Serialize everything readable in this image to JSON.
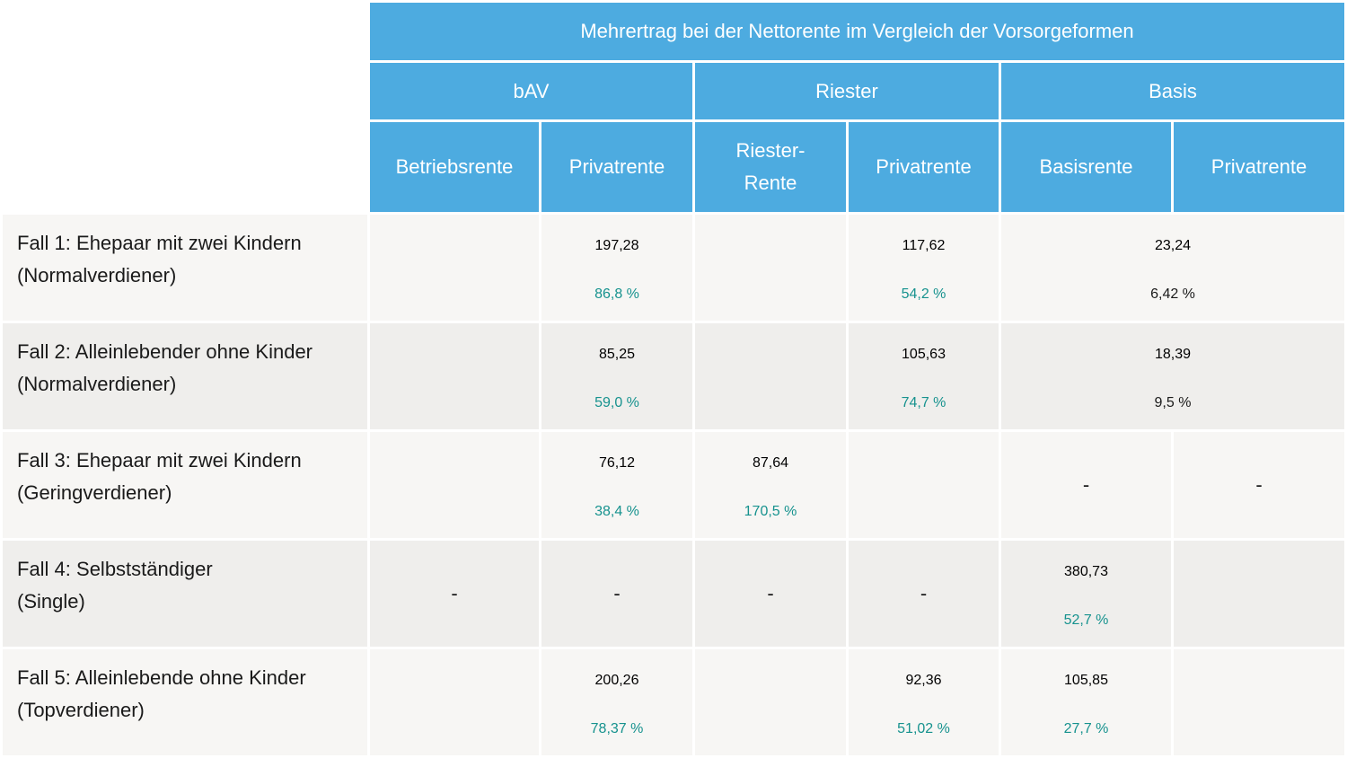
{
  "header": {
    "title": "Mehrertrag bei der Nettorente im Vergleich der Vorsorgeformen",
    "groups": [
      "bAV",
      "Riester",
      "Basis"
    ],
    "columns": [
      "Betriebsrente",
      "Privatrente",
      "Riester-",
      "Rente",
      "Privatrente",
      "Basisrente",
      "Privatrente"
    ]
  },
  "rows": [
    {
      "label1": "Fall 1: Ehepaar mit zwei Kindern",
      "label2": "(Normalverdiener)",
      "bav_priv_val": "197,28",
      "bav_priv_pct": "86,8 %",
      "riester_priv_val": "117,62",
      "riester_priv_pct": "54,2 %",
      "basis_val": "23,24",
      "basis_pct": "6,42 %"
    },
    {
      "label1": "Fall 2: Alleinlebender ohne Kinder",
      "label2": "(Normalverdiener)",
      "bav_priv_val": "85,25",
      "bav_priv_pct": "59,0 %",
      "riester_priv_val": "105,63",
      "riester_priv_pct": "74,7 %",
      "basis_val": "18,39",
      "basis_pct": "9,5 %"
    },
    {
      "label1": "Fall 3: Ehepaar mit zwei Kindern",
      "label2": "(Geringverdiener)",
      "bav_priv_val": "76,12",
      "bav_priv_pct": "38,4 %",
      "riester_val": "87,64",
      "riester_pct": "170,5 %",
      "basis_basisrente": "-",
      "basis_priv": "-"
    },
    {
      "label1": "Fall 4: Selbstständiger",
      "label2": "(Single)",
      "betriebsrente": "-",
      "bav_priv": "-",
      "riester": "-",
      "riester_priv": "-",
      "basisrente_val": "380,73",
      "basisrente_pct": "52,7 %"
    },
    {
      "label1": "Fall 5: Alleinlebende ohne Kinder",
      "label2": "(Topverdiener)",
      "bav_priv_val": "200,26",
      "bav_priv_pct": "78,37 %",
      "riester_priv_val": "92,36",
      "riester_priv_pct": "51,02 %",
      "basisrente_val": "105,85",
      "basisrente_pct": "27,7 %"
    }
  ],
  "colors": {
    "header": "#4dabe0",
    "percent": "#16928e",
    "row_light": "#f7f6f4",
    "row_dark": "#efeeec"
  }
}
